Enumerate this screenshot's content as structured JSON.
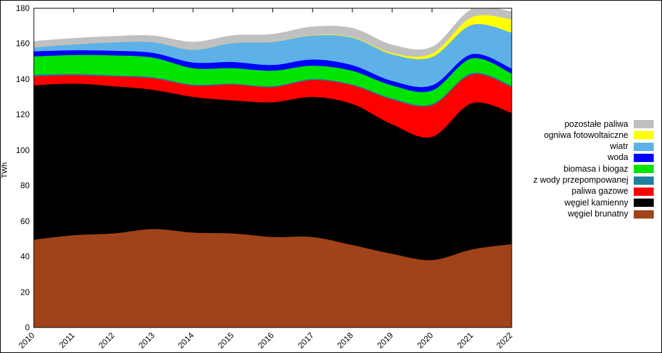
{
  "chart_data": {
    "type": "area",
    "stacked": true,
    "title": "",
    "xlabel": "",
    "ylabel": "TWh",
    "grid": false,
    "legend_position": "right",
    "ylim": [
      0,
      180
    ],
    "ytick_step": 20,
    "yticks": [
      0,
      20,
      40,
      60,
      80,
      100,
      120,
      140,
      160,
      180
    ],
    "categories": [
      "2010",
      "2011",
      "2012",
      "2013",
      "2014",
      "2015",
      "2016",
      "2017",
      "2018",
      "2019",
      "2020",
      "2021",
      "2022"
    ],
    "series_note": "stack order bottom-to-top; legend displays reverse order (top-to-bottom); values in TWh",
    "series": [
      {
        "name": "węgiel brunatny",
        "color": "#a0431a",
        "values": [
          49.5,
          52.0,
          53.0,
          55.5,
          53.5,
          53.0,
          51.0,
          51.0,
          46.5,
          41.5,
          38.0,
          44.0,
          47.0
        ]
      },
      {
        "name": "węgiel kamienny",
        "color": "#000000",
        "values": [
          87.0,
          85.5,
          83.0,
          78.5,
          76.5,
          75.0,
          76.0,
          79.0,
          79.5,
          73.0,
          69.5,
          82.5,
          74.0
        ]
      },
      {
        "name": "paliwa gazowe",
        "color": "#ff0000",
        "values": [
          5.2,
          4.8,
          5.6,
          6.5,
          6.4,
          9.0,
          8.5,
          9.5,
          10.5,
          14.0,
          17.8,
          16.2,
          14.6
        ]
      },
      {
        "name": "z wody przepompowanej",
        "color": "#1f7f9f",
        "values": [
          0.8,
          0.7,
          0.6,
          0.6,
          0.6,
          0.5,
          0.6,
          0.6,
          0.6,
          0.7,
          0.7,
          0.8,
          0.8
        ]
      },
      {
        "name": "biomasa i biogaz",
        "color": "#00e400",
        "values": [
          10.3,
          10.6,
          11.2,
          11.0,
          9.2,
          8.7,
          8.7,
          7.5,
          7.6,
          7.2,
          7.6,
          8.2,
          6.8
        ]
      },
      {
        "name": "woda",
        "color": "#0000ff",
        "values": [
          2.9,
          2.7,
          2.6,
          2.7,
          3.2,
          3.5,
          3.2,
          3.5,
          3.2,
          2.6,
          2.9,
          2.4,
          2.8
        ]
      },
      {
        "name": "wiatr",
        "color": "#5db1e7",
        "values": [
          2.2,
          3.3,
          4.7,
          6.0,
          7.1,
          10.7,
          13.0,
          13.5,
          15.5,
          15.0,
          16.0,
          16.5,
          20.3
        ]
      },
      {
        "name": "ogniwa fotowoltaiczne",
        "color": "#ffff00",
        "values": [
          0.0,
          0.0,
          0.0,
          0.0,
          0.0,
          0.1,
          0.1,
          0.2,
          0.3,
          0.7,
          2.0,
          4.3,
          7.4
        ]
      },
      {
        "name": "pozostałe paliwa",
        "color": "#c0c0c0",
        "values": [
          3.6,
          3.6,
          3.6,
          3.8,
          4.6,
          4.3,
          4.4,
          4.9,
          5.2,
          4.8,
          3.8,
          4.6,
          4.6
        ]
      }
    ]
  }
}
